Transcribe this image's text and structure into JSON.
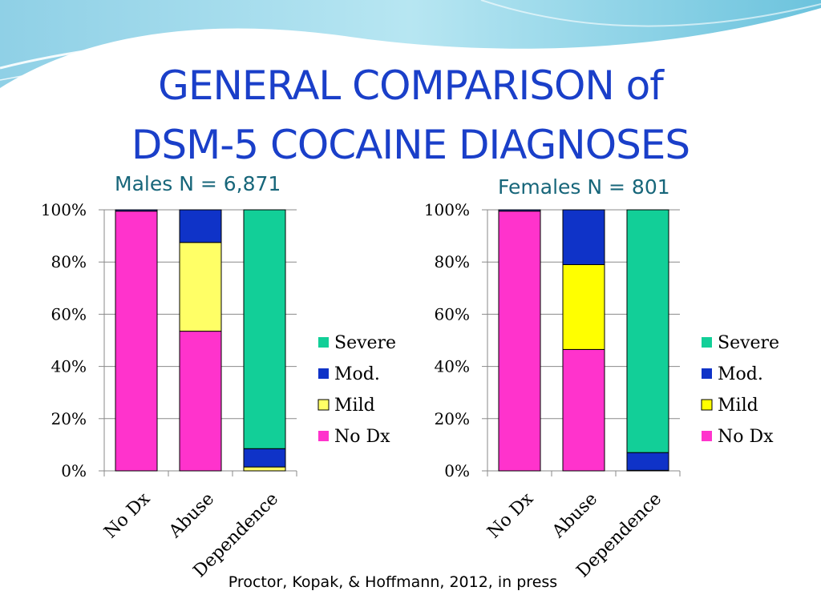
{
  "slide": {
    "title_line_1": "GENERAL COMPARISON of",
    "title_line_2": "DSM-5 COCAINE DIAGNOSES",
    "source": "Proctor, Kopak, & Hoffmann, 2012, in press"
  },
  "colors": {
    "severe": "#12cf98",
    "moderate": "#0f33c8",
    "mild": "#ffff66",
    "mild_females": "#ffff00",
    "no_dx": "#ff33cc",
    "title": "#1a3fc9",
    "subtitle": "#17667a"
  },
  "chart_data": [
    {
      "type": "bar",
      "stacked": true,
      "percent_stacked": true,
      "title": "Males  N = 6,871",
      "categories": [
        "No Dx",
        "Abuse",
        "Dependence"
      ],
      "y_ticks": [
        "0%",
        "20%",
        "40%",
        "60%",
        "80%",
        "100%"
      ],
      "ylim": [
        0,
        100
      ],
      "grid": true,
      "legend_position": "right",
      "series": [
        {
          "name": "No Dx",
          "values": [
            99.5,
            53.5,
            0
          ]
        },
        {
          "name": "Mild",
          "values": [
            0,
            34,
            1.5
          ]
        },
        {
          "name": "Mod.",
          "values": [
            0.5,
            12.5,
            7
          ]
        },
        {
          "name": "Severe",
          "values": [
            0,
            0,
            91.5
          ]
        }
      ]
    },
    {
      "type": "bar",
      "stacked": true,
      "percent_stacked": true,
      "title": "Females  N = 801",
      "categories": [
        "No Dx",
        "Abuse",
        "Dependence"
      ],
      "y_ticks": [
        "0%",
        "20%",
        "40%",
        "60%",
        "80%",
        "100%"
      ],
      "ylim": [
        0,
        100
      ],
      "grid": true,
      "legend_position": "right",
      "series": [
        {
          "name": "No Dx",
          "values": [
            99.5,
            46.5,
            0
          ]
        },
        {
          "name": "Mild",
          "values": [
            0,
            32.5,
            0.2
          ]
        },
        {
          "name": "Mod.",
          "values": [
            0.5,
            21,
            6.8
          ]
        },
        {
          "name": "Severe",
          "values": [
            0,
            0,
            93
          ]
        }
      ]
    }
  ]
}
